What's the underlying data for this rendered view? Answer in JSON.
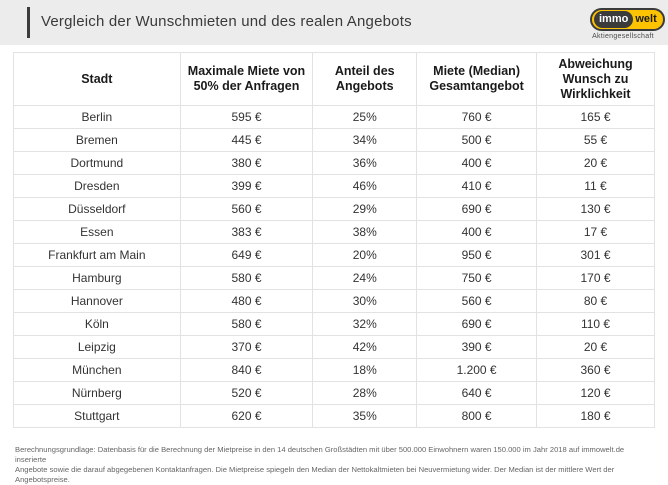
{
  "header": {
    "title": "Vergleich der Wunschmieten und des realen Angebots",
    "logo": {
      "part1": "immo",
      "part2": "welt",
      "subtitle": "Aktiengesellschaft"
    }
  },
  "table": {
    "columns": [
      "Stadt",
      "Maximale Miete von 50% der Anfragen",
      "Anteil des Angebots",
      "Miete (Median) Gesamtangebot",
      "Abweichung Wunsch zu Wirklichkeit"
    ],
    "rows": [
      [
        "Berlin",
        "595 €",
        "25%",
        "760 €",
        "165 €"
      ],
      [
        "Bremen",
        "445 €",
        "34%",
        "500 €",
        "55 €"
      ],
      [
        "Dortmund",
        "380 €",
        "36%",
        "400 €",
        "20 €"
      ],
      [
        "Dresden",
        "399 €",
        "46%",
        "410 €",
        "11 €"
      ],
      [
        "Düsseldorf",
        "560 €",
        "29%",
        "690 €",
        "130 €"
      ],
      [
        "Essen",
        "383 €",
        "38%",
        "400 €",
        "17 €"
      ],
      [
        "Frankfurt am Main",
        "649 €",
        "20%",
        "950 €",
        "301 €"
      ],
      [
        "Hamburg",
        "580 €",
        "24%",
        "750 €",
        "170 €"
      ],
      [
        "Hannover",
        "480 €",
        "30%",
        "560 €",
        "80 €"
      ],
      [
        "Köln",
        "580 €",
        "32%",
        "690 €",
        "110 €"
      ],
      [
        "Leipzig",
        "370 €",
        "42%",
        "390 €",
        "20 €"
      ],
      [
        "München",
        "840 €",
        "18%",
        "1.200 €",
        "360 €"
      ],
      [
        "Nürnberg",
        "520 €",
        "28%",
        "640 €",
        "120 €"
      ],
      [
        "Stuttgart",
        "620 €",
        "35%",
        "800 €",
        "180 €"
      ]
    ]
  },
  "footer": {
    "line1": "Berechnungsgrundlage: Datenbasis für die Berechnung der Mietpreise in den 14 deutschen Großstädten mit über 500.000 Einwohnern waren 150.000 im Jahr 2018 auf immowelt.de inserierte",
    "line2": "Angebote sowie die darauf abgegebenen Kontaktanfragen. Die Mietpreise spiegeln den Median der Nettokaltmieten bei Neuvermietung wider. Der Median ist der mittlere Wert der Angebotspreise."
  },
  "colors": {
    "brand_yellow": "#fdc300",
    "brand_dark": "#3b3b3b",
    "band_gray": "#ececec"
  },
  "chart_data": {
    "type": "table",
    "title": "Vergleich der Wunschmieten und des realen Angebots",
    "columns": [
      "Stadt",
      "Maximale Miete von 50% der Anfragen (€)",
      "Anteil des Angebots (%)",
      "Miete (Median) Gesamtangebot (€)",
      "Abweichung Wunsch zu Wirklichkeit (€)"
    ],
    "rows": [
      [
        "Berlin",
        595,
        25,
        760,
        165
      ],
      [
        "Bremen",
        445,
        34,
        500,
        55
      ],
      [
        "Dortmund",
        380,
        36,
        400,
        20
      ],
      [
        "Dresden",
        399,
        46,
        410,
        11
      ],
      [
        "Düsseldorf",
        560,
        29,
        690,
        130
      ],
      [
        "Essen",
        383,
        38,
        400,
        17
      ],
      [
        "Frankfurt am Main",
        649,
        20,
        950,
        301
      ],
      [
        "Hamburg",
        580,
        24,
        750,
        170
      ],
      [
        "Hannover",
        480,
        30,
        560,
        80
      ],
      [
        "Köln",
        580,
        32,
        690,
        110
      ],
      [
        "Leipzig",
        370,
        42,
        390,
        20
      ],
      [
        "München",
        840,
        18,
        1200,
        360
      ],
      [
        "Nürnberg",
        520,
        28,
        640,
        120
      ],
      [
        "Stuttgart",
        620,
        35,
        800,
        180
      ]
    ]
  }
}
